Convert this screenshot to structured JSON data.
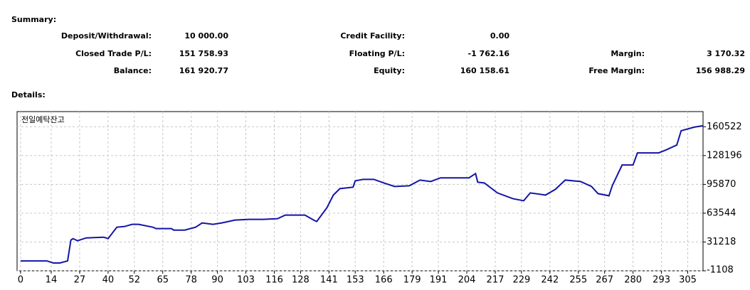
{
  "summary": {
    "title": "Summary:",
    "columns": [
      [
        {
          "label": "Deposit/Withdrawal:",
          "value": "10 000.00"
        },
        {
          "label": "Closed Trade P/L:",
          "value": "151 758.93"
        },
        {
          "label": "Balance:",
          "value": "161 920.77"
        }
      ],
      [
        {
          "label": "Credit Facility:",
          "value": "0.00"
        },
        {
          "label": "Floating P/L:",
          "value": "-1 762.16"
        },
        {
          "label": "Equity:",
          "value": "160 158.61"
        }
      ],
      [
        {
          "label": "Margin:",
          "value": "3 170.32"
        },
        {
          "label": "Free Margin:",
          "value": "156 988.29"
        }
      ]
    ]
  },
  "details": {
    "title": "Details:"
  },
  "chart_data": {
    "type": "line",
    "title": "전일예탁잔고",
    "x": [
      0,
      12,
      15,
      18,
      21.5,
      23,
      24,
      26,
      30,
      38,
      40,
      44,
      47.5,
      51,
      54,
      60.5,
      62,
      69,
      70,
      75,
      80,
      83,
      88,
      92,
      98,
      104.5,
      111,
      117.5,
      121,
      130,
      134,
      135.4,
      140,
      143,
      146,
      152,
      153,
      156.6,
      161.5,
      166,
      171,
      177.7,
      182.6,
      187.5,
      192,
      205,
      208,
      209,
      212,
      218,
      225,
      230,
      233,
      240,
      244.5,
      249,
      256,
      261,
      264,
      269,
      270.5,
      275,
      280,
      282,
      291.7,
      295,
      300,
      302,
      308,
      312
    ],
    "series": [
      {
        "name": "전일예탁잔고",
        "color": "#1414a8",
        "values": [
          10000,
          10000,
          7700,
          7700,
          10000,
          33400,
          35000,
          32600,
          35800,
          36600,
          35000,
          47800,
          48600,
          51000,
          51000,
          47800,
          46200,
          46200,
          44600,
          44600,
          47800,
          52600,
          51000,
          52600,
          55800,
          56600,
          56600,
          57400,
          61400,
          61400,
          55800,
          54200,
          69500,
          83900,
          91100,
          92700,
          99900,
          101500,
          101500,
          97500,
          93500,
          94300,
          100700,
          99100,
          103200,
          103200,
          108000,
          98300,
          97500,
          86300,
          79900,
          77500,
          86300,
          83900,
          90300,
          100700,
          99100,
          93500,
          85500,
          83100,
          94300,
          117600,
          117600,
          131200,
          131200,
          134400,
          140000,
          156100,
          160100,
          161700
        ]
      }
    ],
    "xlim": [
      -1.6,
      312
    ],
    "xticks": [
      0,
      14,
      27,
      40,
      52,
      65,
      78,
      90,
      103,
      116,
      128,
      141,
      153,
      166,
      179,
      191,
      204,
      217,
      229,
      242,
      255,
      267,
      280,
      293,
      305
    ],
    "ylim": [
      -1108,
      177540
    ],
    "yticks": [
      -1108,
      31218,
      63544,
      95870,
      128196,
      160522
    ],
    "grid": true
  }
}
